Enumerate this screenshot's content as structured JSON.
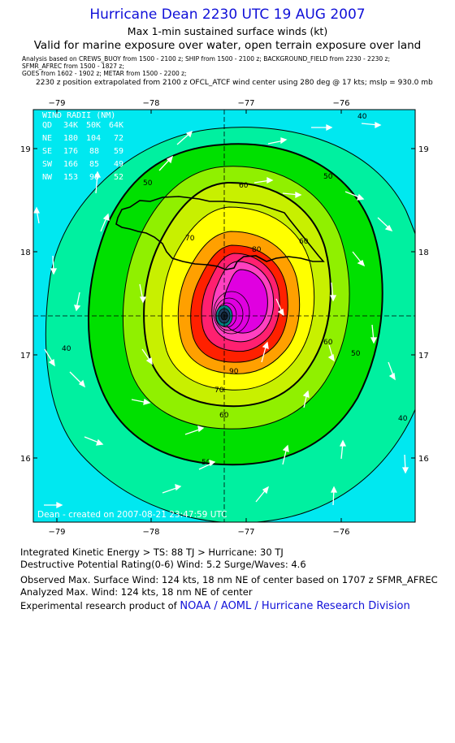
{
  "header": {
    "title": "Hurricane Dean 2230 UTC 19 AUG 2007",
    "subtitle": "Max 1-min sustained surface winds (kt)",
    "valid": "Valid for marine exposure over water, open terrain exposure over land",
    "analysis_line1": "Analysis based on  CREWS_BUOY from 1500 - 2100 z;  SHIP from 1500 - 2100 z;  BACKGROUND_FIELD from 2230 - 2230 z;",
    "analysis_line2": "SFMR_AFREC from 1500 - 1827 z;",
    "analysis_line3": "GOES from 1602 - 1902 z;   METAR from 1500 - 2200 z;",
    "extrapolation": "2230 z position extrapolated from 2100 z OFCL_ATCF wind center using 280 deg @ 17 kts; mslp = 930.0 mb"
  },
  "map": {
    "lon_ticks": [
      "−79",
      "−78",
      "−77",
      "−76"
    ],
    "lat_ticks": [
      "19",
      "18",
      "17",
      "16"
    ],
    "lon_range": [
      -79.2,
      -75.7
    ],
    "lat_range": [
      15.3,
      19.4
    ],
    "center": {
      "lon": -77.0,
      "lat": 17.38
    },
    "radii_table": {
      "title": "WIND RADII (NM)",
      "header": [
        "QD",
        "34K",
        "50K",
        "64K"
      ],
      "rows": [
        [
          "NE",
          "180",
          "104",
          "72"
        ],
        [
          "SE",
          "176",
          "88",
          "59"
        ],
        [
          "SW",
          "166",
          "85",
          "49"
        ],
        [
          "NW",
          "153",
          "98",
          "52"
        ]
      ]
    },
    "contour_labels": [
      "40",
      "50",
      "50",
      "50",
      "60",
      "60",
      "60",
      "60",
      "70",
      "70",
      "80",
      "90",
      "50",
      "40",
      "40"
    ],
    "footer": "Dean - created on 2007-08-21 23:47:59 UTC",
    "colors": {
      "ocean": "#00e8f0",
      "ts_band": "#00f0a0",
      "green": "#00e000",
      "lime": "#90f000",
      "yellow": "#ffff00",
      "orange": "#ffa000",
      "red": "#ff2000",
      "magenta": "#e000e0",
      "core": "#204060"
    }
  },
  "stats": {
    "ike": "Integrated Kinetic Energy > TS: 88 TJ   > Hurricane: 30 TJ",
    "dpr": "Destructive Potential Rating(0-6)   Wind: 5.2 Surge/Waves: 4.6",
    "observed": "Observed Max. Surface Wind: 124 kts, 18 nm NE of center based on 1707 z SFMR_AFREC",
    "analyzed": "Analyzed Max. Wind: 124 kts, 18 nm NE of center",
    "research_prefix": "Experimental research product of",
    "research_org": "NOAA / AOML / Hurricane Research Division"
  }
}
